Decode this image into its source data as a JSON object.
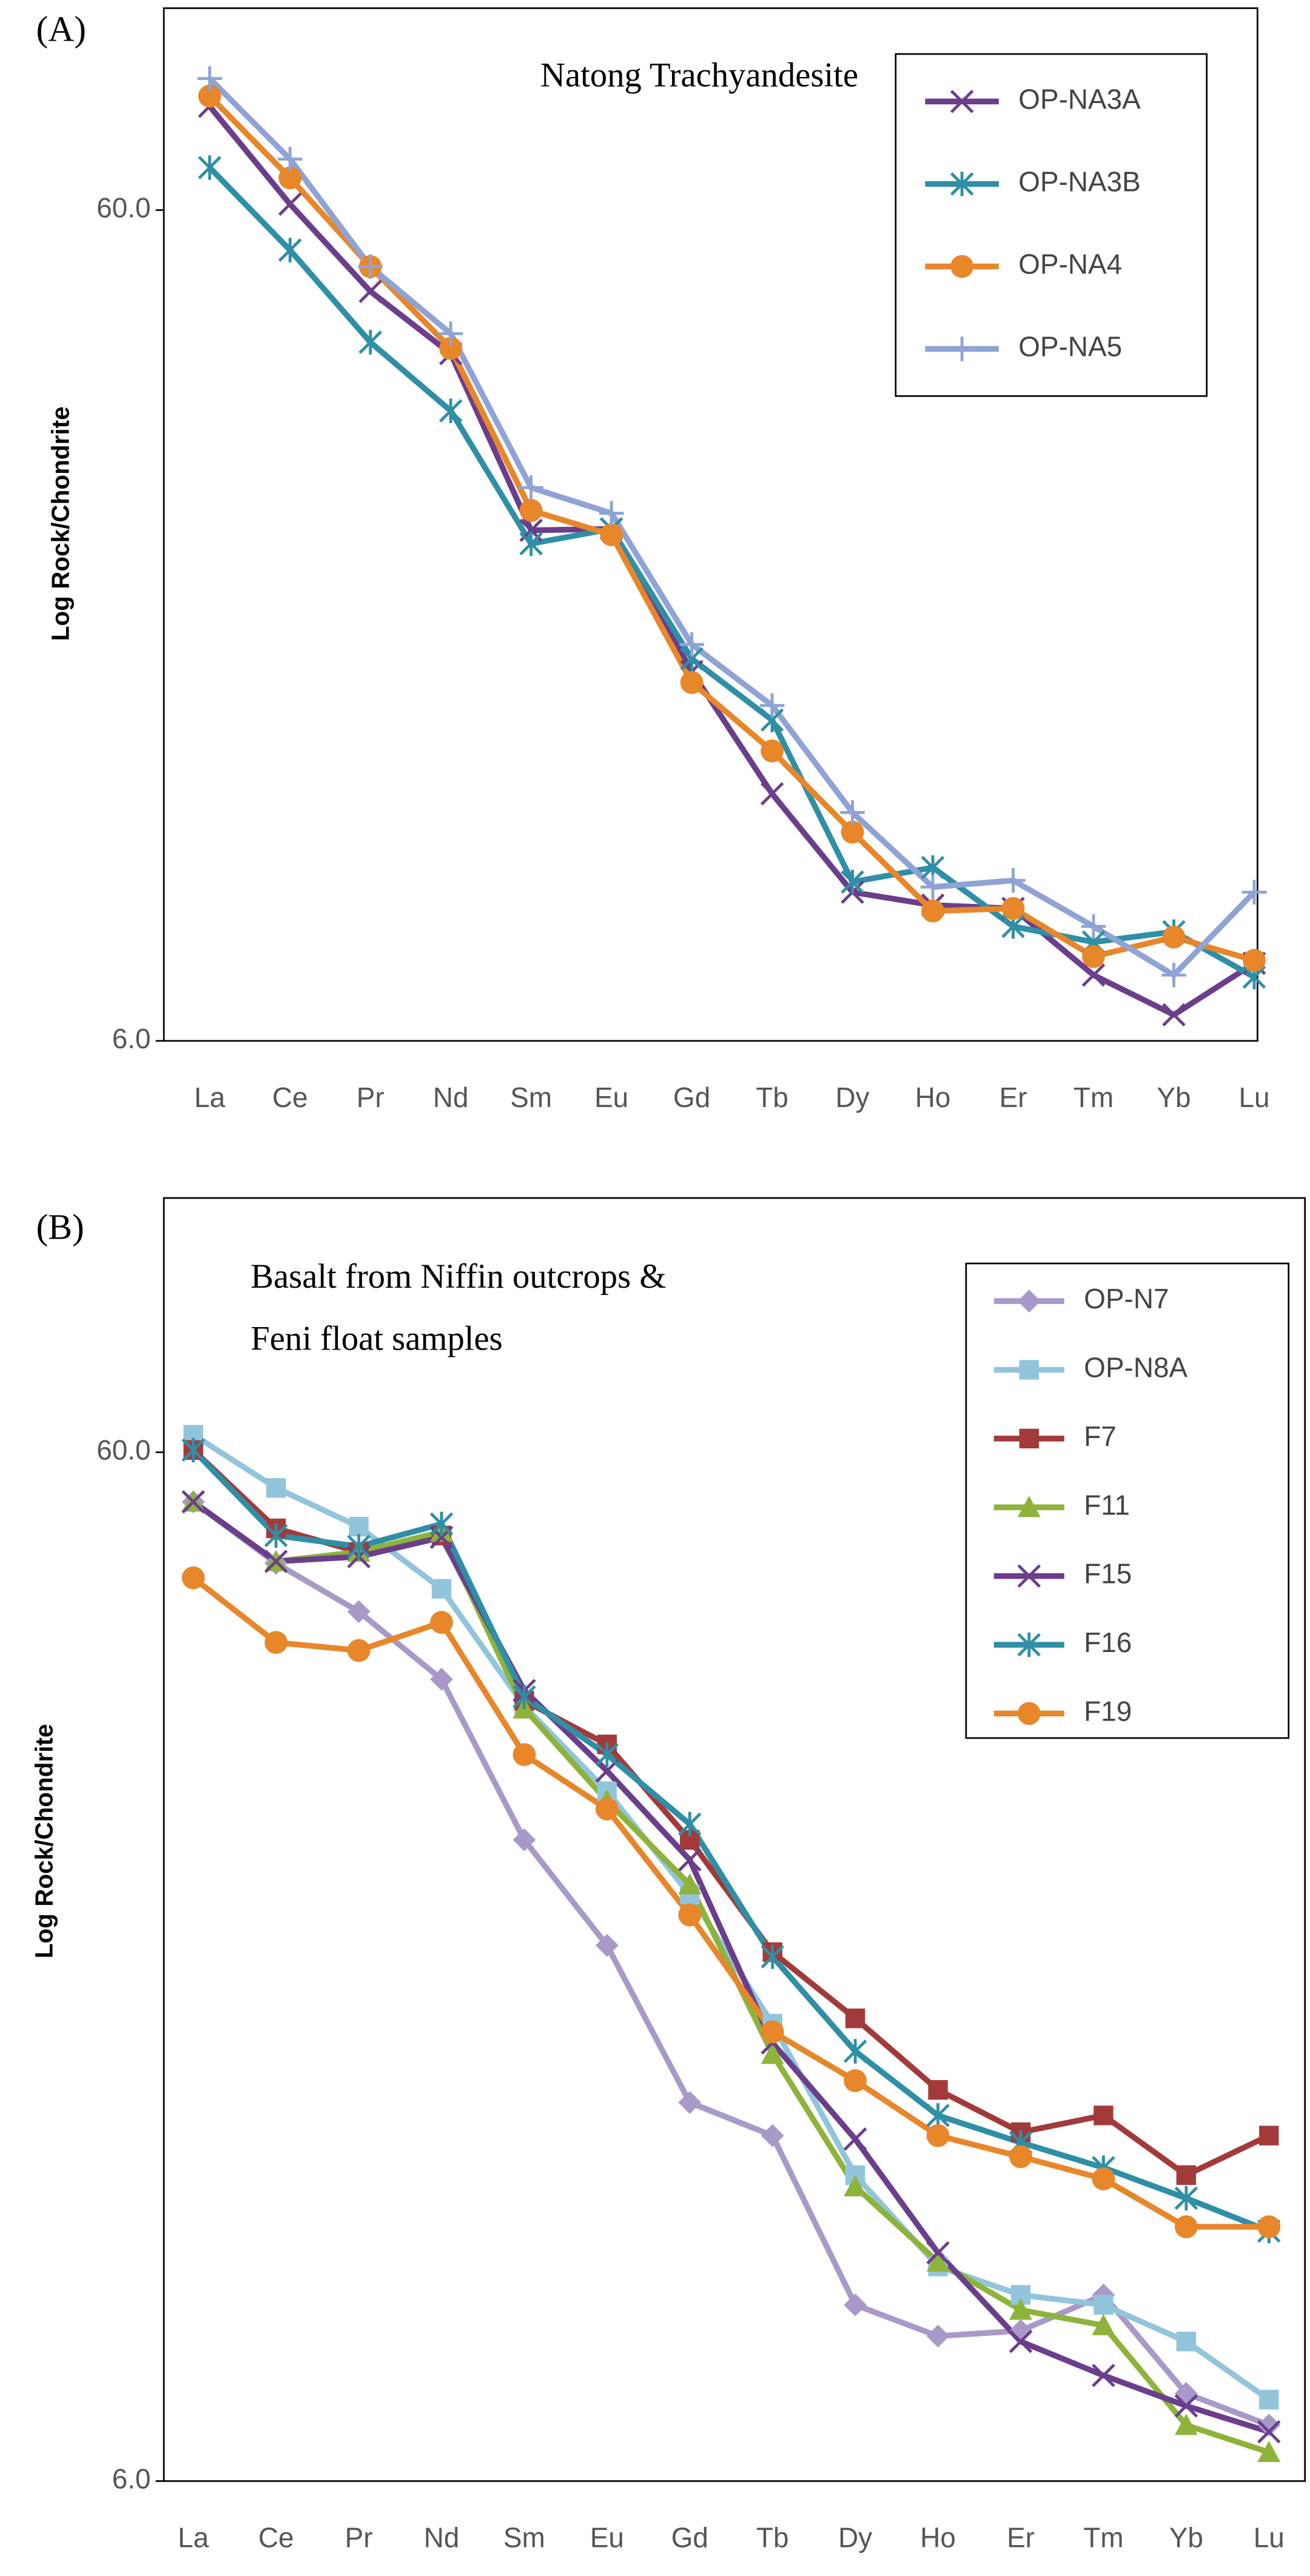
{
  "chart_data": [
    {
      "type": "line",
      "panel": "(A)",
      "title": [
        "Natong Trachyandesite"
      ],
      "y_label": "Log Rock/Chondrite",
      "y_scale": "log",
      "ylim": [
        6,
        105
      ],
      "yticks": [
        {
          "value": 6,
          "label": "6.0"
        },
        {
          "value": 60,
          "label": "60.0"
        }
      ],
      "categories": [
        "La",
        "Ce",
        "Pr",
        "Nd",
        "Sm",
        "Eu",
        "Gd",
        "Tb",
        "Dy",
        "Ho",
        "Er",
        "Tm",
        "Yb",
        "Lu"
      ],
      "legend": "upper right",
      "series": [
        {
          "name": "OP-NA3A",
          "color": "#6b3e8c",
          "marker": "x",
          "values": [
            80,
            61,
            47.9,
            40.3,
            24.7,
            24.8,
            16.7,
            11.9,
            9.06,
            8.74,
            8.66,
            7.2,
            6.45,
            7.44
          ]
        },
        {
          "name": "OP-NA3B",
          "color": "#2e8fa6",
          "marker": "asterisk",
          "values": [
            67.5,
            53.7,
            41.6,
            34.4,
            23.8,
            24.8,
            17.3,
            14.6,
            9.32,
            9.7,
            8.24,
            7.89,
            8.12,
            7.16
          ]
        },
        {
          "name": "OP-NA4",
          "color": "#e8862a",
          "marker": "circle",
          "values": [
            82.3,
            65.6,
            51.3,
            40.9,
            26.1,
            24.4,
            16.2,
            13.4,
            10.7,
            8.6,
            8.66,
            7.58,
            8.0,
            7.5
          ]
        },
        {
          "name": "OP-NA5",
          "color": "#8fa3d4",
          "marker": "plus",
          "values": [
            86.4,
            69.1,
            51.3,
            42.6,
            27.8,
            25.9,
            18.0,
            15.2,
            11.3,
            9.19,
            9.36,
            8.24,
            7.2,
            9.06
          ]
        }
      ]
    },
    {
      "type": "line",
      "panel": "(B)",
      "title": [
        "Basalt from Niffin outcrops &",
        "Feni float samples"
      ],
      "y_label": "Log Rock/Chondrite",
      "y_scale": "log",
      "ylim": [
        6,
        106
      ],
      "yticks": [
        {
          "value": 6,
          "label": "6.0"
        },
        {
          "value": 60,
          "label": "60.0"
        }
      ],
      "categories": [
        "La",
        "Ce",
        "Pr",
        "Nd",
        "Sm",
        "Eu",
        "Gd",
        "Tb",
        "Dy",
        "Ho",
        "Er",
        "Tm",
        "Yb",
        "Lu"
      ],
      "legend": "upper right",
      "series": [
        {
          "name": "OP-N7",
          "color": "#a899c8",
          "marker": "diamond",
          "values": [
            53.7,
            46.8,
            42.0,
            36.1,
            25.2,
            19.9,
            14.0,
            13.0,
            8.9,
            8.3,
            8.4,
            9.1,
            7.3,
            6.8
          ]
        },
        {
          "name": "OP-N8A",
          "color": "#92c5dc",
          "marker": "square",
          "values": [
            62.4,
            55.4,
            50.8,
            44.2,
            34.0,
            28.1,
            22.3,
            16.7,
            11.9,
            9.7,
            9.1,
            8.9,
            8.2,
            7.2
          ]
        },
        {
          "name": "F7",
          "color": "#a33a3a",
          "marker": "square",
          "values": [
            60.3,
            50.6,
            48.0,
            49.8,
            34.4,
            31.2,
            25.2,
            19.6,
            16.9,
            14.4,
            13.1,
            13.6,
            11.9,
            13.0
          ]
        },
        {
          "name": "F11",
          "color": "#8db33a",
          "marker": "triangle",
          "values": [
            53.7,
            47.0,
            48.0,
            50.2,
            33.8,
            27.5,
            22.8,
            15.6,
            11.6,
            9.8,
            8.8,
            8.5,
            6.8,
            6.4
          ]
        },
        {
          "name": "F15",
          "color": "#6b3e8c",
          "marker": "x",
          "values": [
            53.7,
            47.0,
            47.5,
            49.6,
            35.2,
            29.4,
            24.1,
            16.0,
            12.9,
            10.0,
            8.2,
            7.6,
            7.1,
            6.7
          ]
        },
        {
          "name": "F16",
          "color": "#2e8fa6",
          "marker": "asterisk",
          "values": [
            60.3,
            49.8,
            48.6,
            51.1,
            34.7,
            30.5,
            26.1,
            19.4,
            15.7,
            13.6,
            12.8,
            12.1,
            11.3,
            10.5
          ]
        },
        {
          "name": "F19",
          "color": "#e8862a",
          "marker": "circle",
          "values": [
            45.3,
            39.2,
            38.5,
            41.0,
            30.5,
            27.0,
            21.3,
            16.4,
            14.7,
            13.0,
            12.4,
            11.8,
            10.6,
            10.6
          ]
        }
      ]
    }
  ]
}
